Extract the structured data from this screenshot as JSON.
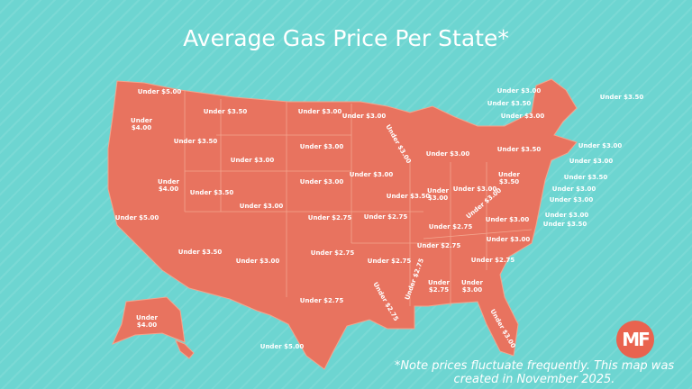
{
  "title": "Average Gas Price Per State*",
  "labels": [
    "Under $5.00",
    "Under $4.00",
    "Under $3.50",
    "Under $3.00",
    "Under $3.00",
    "Under $3.50",
    "Under $3.00",
    "Under $3.00",
    "Under $3.00",
    "Under $3.00",
    "Under $4.00",
    "Under $3.50",
    "Under $3.00",
    "Under $3.00",
    "Under $3.00",
    "Under $5.00",
    "Under $2.75",
    "Under $2.75",
    "Under $3.50",
    "Under $3.00",
    "Under $3.00",
    "Under $3.50",
    "Under $3.00",
    "Under $2.75",
    "Under $2.75",
    "Under $2.75",
    "Under $2.75",
    "Under $2.75",
    "Under $2.75",
    "Under $2.75",
    "Under $2.75",
    "Under $3.00",
    "Under $2.75",
    "Under $3.00",
    "Under $3.00",
    "Under $3.50",
    "Under $3.00",
    "Under $3.50",
    "Under $3.00",
    "Under $4.00",
    "Under $5.00",
    "Under $3.00",
    "Under $3.50",
    "Under $3.00",
    "Under $3.50",
    "Under $3.00",
    "Under $3.00",
    "Under $3.50",
    "Under $3.00",
    "Under $3.00",
    "Under $3.00",
    "Under $3.50"
  ],
  "note": "*Note prices fluctuate frequently. This map was created in November 2025.",
  "logo": "MF"
}
